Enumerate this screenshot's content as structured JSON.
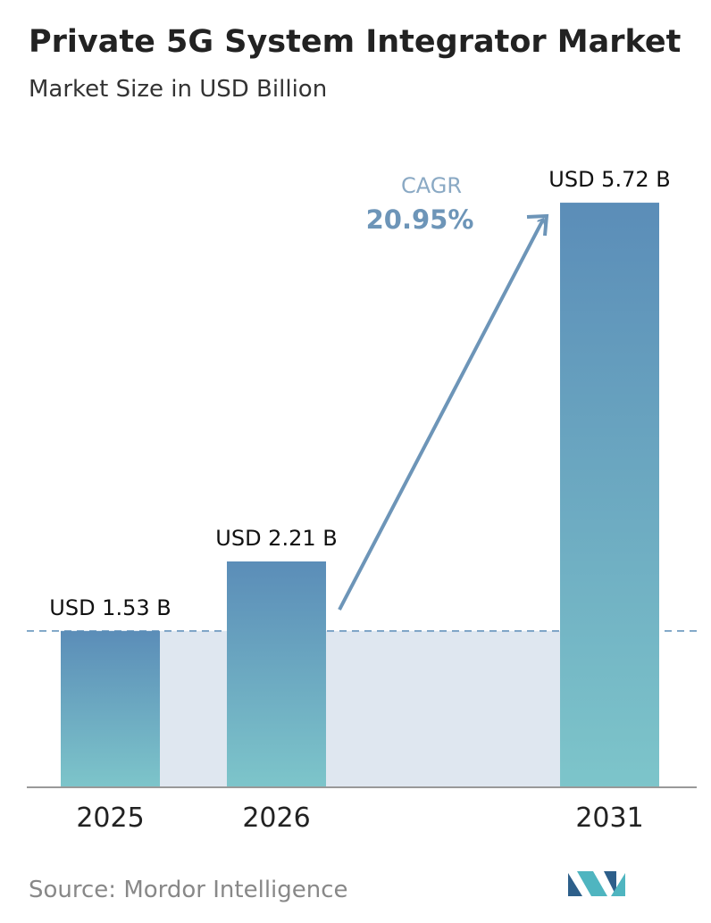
{
  "chart_data": {
    "type": "bar",
    "title": "Private 5G System Integrator Market",
    "subtitle": "Market Size in USD Billion",
    "categories": [
      "2025",
      "2026",
      "2031"
    ],
    "values": [
      1.53,
      2.21,
      5.72
    ],
    "value_labels": [
      "USD 1.53 B",
      "USD 2.21 B",
      "USD 5.72 B"
    ],
    "color_top": "#5b8db8",
    "color_bottom": "#7dc5ca",
    "cagr_label": "CAGR",
    "cagr_value": "20.95%",
    "source": "Source: Mordor Intelligence"
  }
}
